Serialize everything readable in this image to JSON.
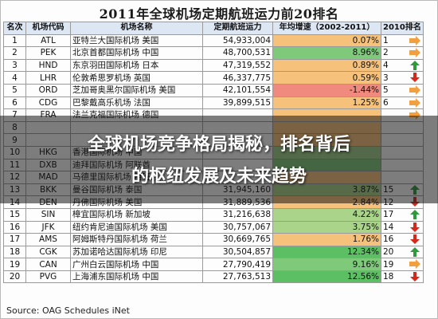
{
  "title": "2011年全球机场定期航班运力前20排名",
  "headers": [
    "名次",
    "机场代码",
    "机场名称",
    "定期航班运力",
    "年均增速（2002-2011）",
    "2010排名"
  ],
  "rows": [
    {
      "rank": "1",
      "code": "ATL",
      "name": "亚特兰大国际机场  美国",
      "capacity": "54,933,004",
      "growth": "0.07%",
      "growth_color": "#f6c17a",
      "r2010": "1",
      "trend": "flat"
    },
    {
      "rank": "2",
      "code": "PEK",
      "name": "北京首都国际机场  中国",
      "capacity": "48,700,531",
      "growth": "8.96%",
      "growth_color": "#7fc97a",
      "r2010": "2",
      "trend": "flat"
    },
    {
      "rank": "3",
      "code": "HND",
      "name": "东京羽田国际机场  日本",
      "capacity": "47,319,552",
      "growth": "0.89%",
      "growth_color": "#f6c17a",
      "r2010": "4",
      "trend": "up"
    },
    {
      "rank": "4",
      "code": "LHR",
      "name": "伦敦希思罗机场  英国",
      "capacity": "46,337,775",
      "growth": "0.59%",
      "growth_color": "#f6c17a",
      "r2010": "3",
      "trend": "down"
    },
    {
      "rank": "5",
      "code": "ORD",
      "name": "芝加哥奥黑尔国际机场  美国",
      "capacity": "42,101,554",
      "growth": "-1.44%",
      "growth_color": "#f08a7e",
      "r2010": "5",
      "trend": "flat"
    },
    {
      "rank": "6",
      "code": "CDG",
      "name": "巴黎戴高乐机场  法国",
      "capacity": "39,899,515",
      "growth": "1.25%",
      "growth_color": "#f6c17a",
      "r2010": "6",
      "trend": "flat"
    },
    {
      "rank": "7",
      "code": "FRA",
      "name": "法兰克福国际机场  德国",
      "capacity": "",
      "growth": "",
      "growth_color": "#f6c17a",
      "r2010": "",
      "trend": "flat"
    },
    {
      "rank": "8",
      "code": "",
      "name": "",
      "capacity": "",
      "growth": "",
      "growth_color": "#f6c17a",
      "r2010": "",
      "trend": "none"
    },
    {
      "rank": "9",
      "code": "",
      "name": "",
      "capacity": "",
      "growth": "",
      "growth_color": "#f6c17a",
      "r2010": "",
      "trend": "none"
    },
    {
      "rank": "10",
      "code": "HKG",
      "name": "香港国际机场  中国",
      "capacity": "",
      "growth": "",
      "growth_color": "#9fd08a",
      "r2010": "",
      "trend": "none"
    },
    {
      "rank": "11",
      "code": "DXB",
      "name": "迪拜国际机场  阿联酋",
      "capacity": "",
      "growth": "",
      "growth_color": "#7fc97a",
      "r2010": "",
      "trend": "none"
    },
    {
      "rank": "12",
      "code": "MAD",
      "name": "马德里国际机场  西班牙",
      "capacity": "",
      "growth": "",
      "growth_color": "#f6c17a",
      "r2010": "",
      "trend": "none"
    },
    {
      "rank": "13",
      "code": "BKK",
      "name": "曼谷国际机场  泰国",
      "capacity": "31,945,160",
      "growth": "3.87%",
      "growth_color": "#a9d48a",
      "r2010": "15",
      "trend": "up"
    },
    {
      "rank": "14",
      "code": "DEN",
      "name": "丹佛国际机场  美国",
      "capacity": "31,889,536",
      "growth": "2.84%",
      "growth_color": "#f6c17a",
      "r2010": "12",
      "trend": "down"
    },
    {
      "rank": "15",
      "code": "SIN",
      "name": "樟宜国际机场  新加坡",
      "capacity": "31,216,638",
      "growth": "4.22%",
      "growth_color": "#a9d48a",
      "r2010": "17",
      "trend": "up"
    },
    {
      "rank": "16",
      "code": "JFK",
      "name": "纽约肯尼迪国际机场  美国",
      "capacity": "30,757,067",
      "growth": "3.75%",
      "growth_color": "#a9d48a",
      "r2010": "14",
      "trend": "down"
    },
    {
      "rank": "17",
      "code": "AMS",
      "name": "阿姆斯特丹国际机场  荷兰",
      "capacity": "30,669,765",
      "growth": "1.76%",
      "growth_color": "#f6c17a",
      "r2010": "16",
      "trend": "down"
    },
    {
      "rank": "18",
      "code": "CGK",
      "name": "苏加诺哈达国际机场  印尼",
      "capacity": "30,504,857",
      "growth": "12.34%",
      "growth_color": "#5cbf63",
      "r2010": "20",
      "trend": "up"
    },
    {
      "rank": "19",
      "code": "CAN",
      "name": "广州白云国际机场  中国",
      "capacity": "27,790,419",
      "growth": "9.16%",
      "growth_color": "#7fc97a",
      "r2010": "19",
      "trend": "flat"
    },
    {
      "rank": "20",
      "code": "PVG",
      "name": "上海浦东国际机场  中国",
      "capacity": "27,763,513",
      "growth": "12.56%",
      "growth_color": "#5cbf63",
      "r2010": "18",
      "trend": "down"
    }
  ],
  "banner": {
    "line1": "全球机场竞争格局揭秘，排名背后",
    "line2": "的枢纽发展及未来趋势"
  },
  "source": "Source: OAG Schedules iNet",
  "colors": {
    "arrow_up": "#2e9a3c",
    "arrow_down": "#d42a1e",
    "arrow_flat": "#f0a040",
    "header_bg": "#dde6f3"
  }
}
